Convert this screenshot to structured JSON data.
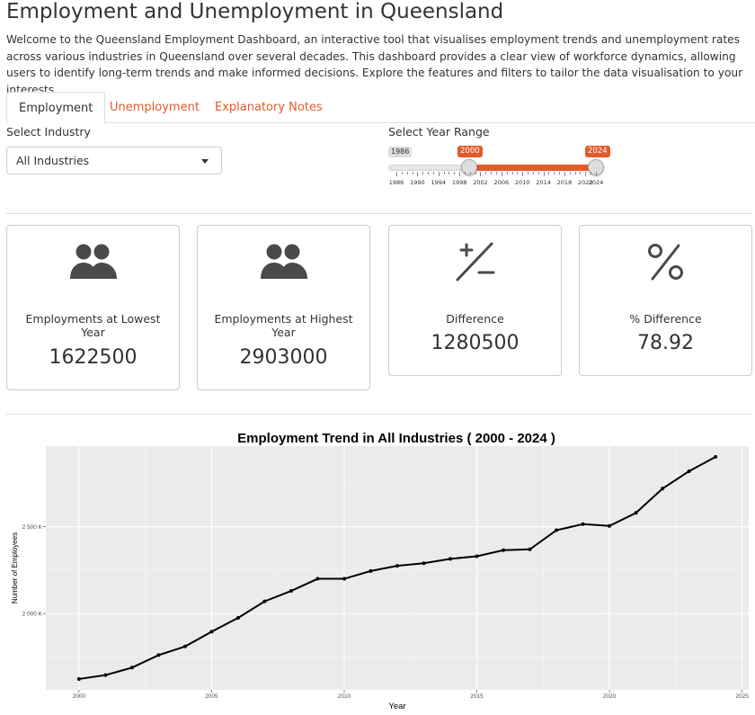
{
  "header": {
    "title": "Employment and Unemployment in Queensland",
    "intro": "Welcome to the Queensland Employment Dashboard, an interactive tool that visualises employment trends and unemployment rates across various industries in Queensland over several decades. This dashboard provides a clear view of workforce dynamics, allowing users to identify long-term trends and make informed decisions. Explore the features and filters to tailor the data visualisation to your interests."
  },
  "tabs": [
    {
      "label": "Employment",
      "active": true
    },
    {
      "label": "Unemployment",
      "active": false
    },
    {
      "label": "Explanatory Notes",
      "active": false
    }
  ],
  "filters": {
    "industry_label": "Select Industry",
    "industry_value": "All Industries",
    "year_label": "Select Year Range",
    "slider_min": "1986",
    "slider_from": "2000",
    "slider_to": "2024",
    "slider_ticks": [
      "1986",
      "1990",
      "1994",
      "1998",
      "2002",
      "2006",
      "2010",
      "2014",
      "2018",
      "2022",
      "2024"
    ]
  },
  "cards": [
    {
      "icon": "users-icon",
      "title": "Employments at Lowest Year",
      "value": "1622500"
    },
    {
      "icon": "users-icon",
      "title": "Employments at Highest Year",
      "value": "2903000"
    },
    {
      "icon": "plus-minus-icon",
      "title": "Difference",
      "value": "1280500"
    },
    {
      "icon": "percent-icon",
      "title": "% Difference",
      "value": "78.92"
    }
  ],
  "colors": {
    "accent": "#e35a2b",
    "panel": "#ebebeb",
    "text": "#333333"
  },
  "chart_data": {
    "type": "line",
    "title": "Employment Trend in All Industries ( 2000 - 2024 )",
    "xlabel": "Year",
    "ylabel": "Number of Employees",
    "x": [
      2000,
      2001,
      2002,
      2003,
      2004,
      2005,
      2006,
      2007,
      2008,
      2009,
      2010,
      2011,
      2012,
      2013,
      2014,
      2015,
      2016,
      2017,
      2018,
      2019,
      2020,
      2021,
      2022,
      2023,
      2024
    ],
    "values": [
      1622500,
      1645000,
      1688000,
      1760000,
      1810000,
      1895000,
      1975000,
      2070000,
      2130000,
      2200000,
      2200000,
      2245000,
      2275000,
      2290000,
      2315000,
      2330000,
      2365000,
      2370000,
      2480000,
      2515000,
      2505000,
      2580000,
      2720000,
      2820000,
      2903000
    ],
    "xticks": [
      2000,
      2005,
      2010,
      2015,
      2020,
      2025
    ],
    "xtick_labels": [
      "2000",
      "2005",
      "2010",
      "2015",
      "2020",
      "2025"
    ],
    "yticks": [
      2000000,
      2500000
    ],
    "ytick_labels": [
      "2 000 K",
      "2 500 K"
    ],
    "xlim": [
      1998.75,
      2025.25
    ],
    "ylim": [
      1560000,
      2965000
    ],
    "grid": true
  }
}
